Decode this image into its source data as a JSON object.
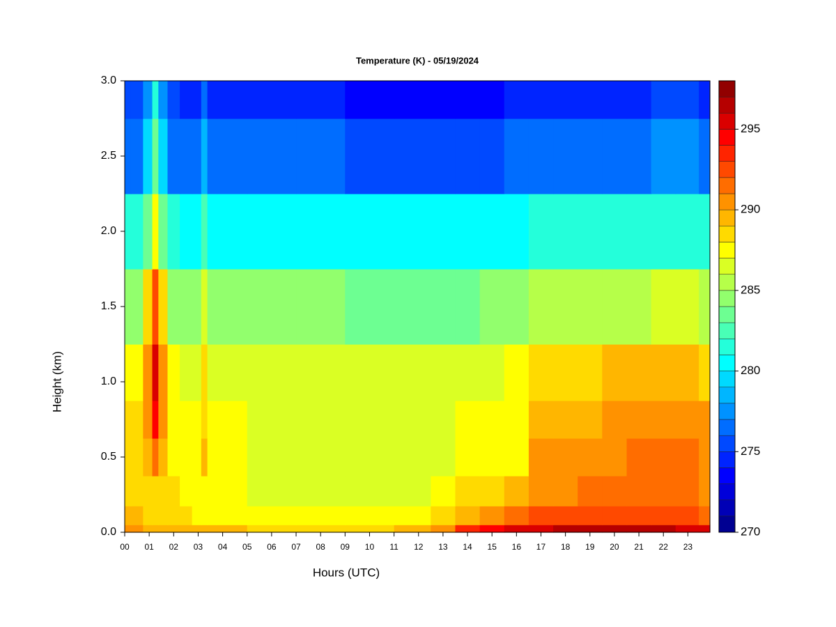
{
  "chart_data": {
    "type": "heatmap",
    "title": "Temperature (K) - 05/19/2024",
    "x_label": "Hours (UTC)",
    "y_label": "Height (km)",
    "x": [
      0,
      0.5,
      1,
      1.25,
      1.5,
      2,
      2.5,
      3,
      3.25,
      3.5,
      4,
      6,
      8,
      10,
      12,
      13,
      14,
      15,
      16,
      17,
      18,
      19,
      20,
      21,
      22,
      23,
      23.9
    ],
    "y": [
      0,
      0.1,
      0.25,
      0.5,
      0.75,
      1.0,
      1.5,
      2.0,
      2.5,
      3.0
    ],
    "z": [
      [
        290,
        290,
        289.5,
        289,
        289.5,
        289.5,
        289.5,
        289,
        289,
        289,
        289,
        288.5,
        288.5,
        288.5,
        289,
        290,
        293,
        294,
        295.5,
        295.5,
        296,
        296.5,
        296,
        296,
        296,
        295.5,
        295
      ],
      [
        289,
        289,
        288.5,
        288,
        288.5,
        288,
        288,
        287.5,
        287.5,
        287.5,
        287.5,
        287,
        287,
        287,
        287.5,
        288,
        289.5,
        290,
        291,
        292,
        292,
        292.5,
        292.5,
        292.5,
        292.5,
        292,
        291.5
      ],
      [
        288.5,
        288.5,
        288.5,
        288.5,
        288.5,
        288,
        287.5,
        287,
        287.5,
        287,
        287,
        286.5,
        286,
        286,
        286.5,
        287,
        288,
        288.5,
        289,
        290.5,
        290.5,
        291,
        291,
        291,
        291,
        291,
        290.5
      ],
      [
        288,
        288,
        289,
        291,
        289,
        287.5,
        287,
        287,
        289,
        287,
        287,
        286.5,
        286.5,
        286.5,
        286.5,
        286.5,
        287,
        287,
        287.5,
        290,
        290,
        290,
        290.5,
        291,
        291,
        291,
        290.5
      ],
      [
        288,
        288,
        290,
        294,
        290,
        287.5,
        287,
        287,
        288.5,
        287,
        287,
        286.5,
        286.5,
        286.5,
        286.5,
        286.5,
        287,
        287,
        287.5,
        289.5,
        289.5,
        289.5,
        290,
        290.5,
        290.5,
        290.5,
        290
      ],
      [
        287,
        287,
        290,
        295,
        290,
        287,
        286.5,
        286.5,
        288,
        286.5,
        286.5,
        286,
        286,
        286,
        286,
        286,
        286,
        286.5,
        287,
        288.5,
        288.5,
        288.5,
        289,
        289,
        289,
        289,
        288.5
      ],
      [
        284.5,
        284.5,
        288,
        292,
        288,
        284.5,
        284,
        284,
        286,
        284,
        284,
        284,
        284,
        283.5,
        283.5,
        283.5,
        283.5,
        284,
        284,
        285,
        285,
        285.5,
        285.5,
        285.5,
        286,
        286,
        285.5
      ],
      [
        281,
        281,
        283,
        287,
        283,
        281,
        280.5,
        280.5,
        282,
        280.5,
        280.5,
        280.5,
        280.5,
        280,
        280,
        280,
        280,
        280,
        280.5,
        281,
        281,
        281,
        281,
        281,
        281.5,
        281.5,
        281
      ],
      [
        276.5,
        276.5,
        279,
        283,
        279,
        276.5,
        276,
        276,
        278,
        276,
        276,
        276,
        276,
        275.5,
        275.5,
        275.5,
        275.5,
        275.5,
        276,
        276,
        276,
        276,
        276.5,
        276.5,
        277,
        277,
        276.5
      ],
      [
        275,
        275,
        277,
        281,
        277,
        275,
        274.5,
        274.5,
        276,
        274.5,
        274,
        274,
        274,
        273.5,
        273.5,
        273.5,
        273.5,
        273.5,
        274,
        274,
        274,
        274,
        274.5,
        274.5,
        275,
        275,
        274.5
      ]
    ],
    "xlim": [
      0,
      23.9
    ],
    "ylim": [
      0,
      3
    ],
    "xticks": [
      {
        "value": 0,
        "label": "00"
      },
      {
        "value": 1,
        "label": "01"
      },
      {
        "value": 2,
        "label": "02"
      },
      {
        "value": 3,
        "label": "03"
      },
      {
        "value": 4,
        "label": "04"
      },
      {
        "value": 5,
        "label": "05"
      },
      {
        "value": 6,
        "label": "06"
      },
      {
        "value": 7,
        "label": "07"
      },
      {
        "value": 8,
        "label": "08"
      },
      {
        "value": 9,
        "label": "09"
      },
      10,
      11,
      12,
      13,
      14,
      15,
      16,
      17,
      18,
      19,
      20,
      21,
      22,
      23
    ],
    "yticks": [
      {
        "value": 0,
        "label": "0.0"
      },
      0.5,
      {
        "value": 1,
        "label": "1.0"
      },
      1.5,
      {
        "value": 2,
        "label": "2.0"
      },
      2.5,
      {
        "value": 3,
        "label": "3.0"
      }
    ],
    "colorbar": {
      "lim": [
        270,
        298
      ],
      "ticks": [
        270,
        275,
        280,
        285,
        290,
        295
      ],
      "step": 1,
      "colors": [
        "#000092",
        "#0000b6",
        "#0000da",
        "#0000ff",
        "#0024ff",
        "#0049ff",
        "#006dff",
        "#0092ff",
        "#00b6ff",
        "#00daff",
        "#00ffff",
        "#24ffda",
        "#49ffb6",
        "#6dff92",
        "#92ff6d",
        "#b6ff49",
        "#daff24",
        "#ffff00",
        "#ffda00",
        "#ffb600",
        "#ff9200",
        "#ff6d00",
        "#ff4900",
        "#ff2400",
        "#ff0000",
        "#da0000",
        "#b60000",
        "#920000"
      ]
    }
  }
}
